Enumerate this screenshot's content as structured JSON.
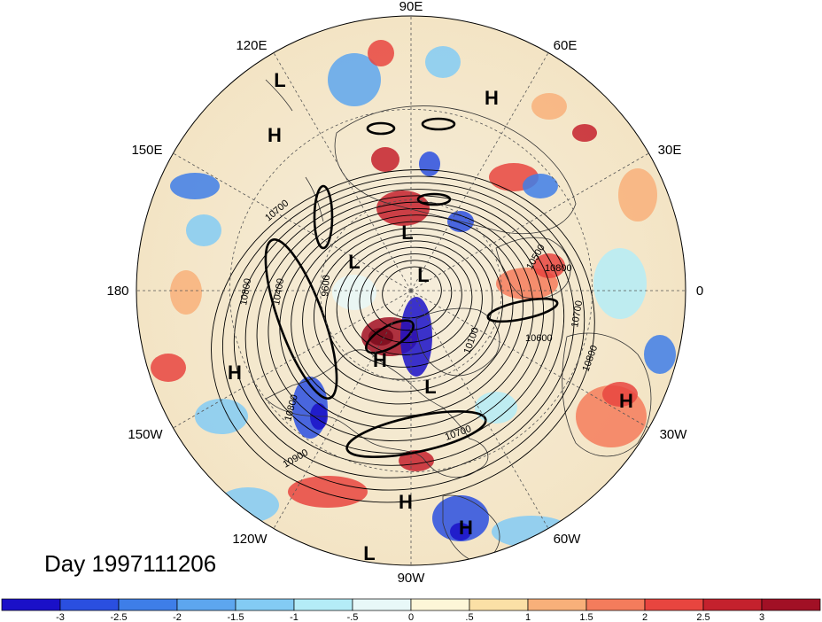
{
  "title": "Day 1997111206",
  "longitude_labels": [
    "90E",
    "60E",
    "30E",
    "0",
    "30W",
    "60W",
    "90W",
    "120W",
    "150W",
    "180",
    "150E",
    "120E"
  ],
  "pressure_centers": [
    "L",
    "H",
    "L",
    "H",
    "H",
    "L",
    "L",
    "L",
    "H",
    "H",
    "L",
    "H",
    "H",
    "H",
    "L"
  ],
  "contour_labels": [
    "10700",
    "10800",
    "10400",
    "9600",
    "10500",
    "10100",
    "10600",
    "10700",
    "10800",
    "10700",
    "10800",
    "10900",
    "10800"
  ],
  "colorbar": {
    "ticks": [
      "-3",
      "-2.5",
      "-2",
      "-1.5",
      "-1",
      "-.5",
      "0",
      ".5",
      "1",
      "1.5",
      "2",
      "2.5",
      "3"
    ],
    "colors": [
      "#1a10c8",
      "#2a4fe0",
      "#3e7ee8",
      "#5da6ef",
      "#83cbf4",
      "#b4ecf7",
      "#e8f8f8",
      "#fdf6d8",
      "#fbe0a6",
      "#f8b07a",
      "#f47c5c",
      "#e8453f",
      "#c4212d",
      "#a11025"
    ]
  }
}
